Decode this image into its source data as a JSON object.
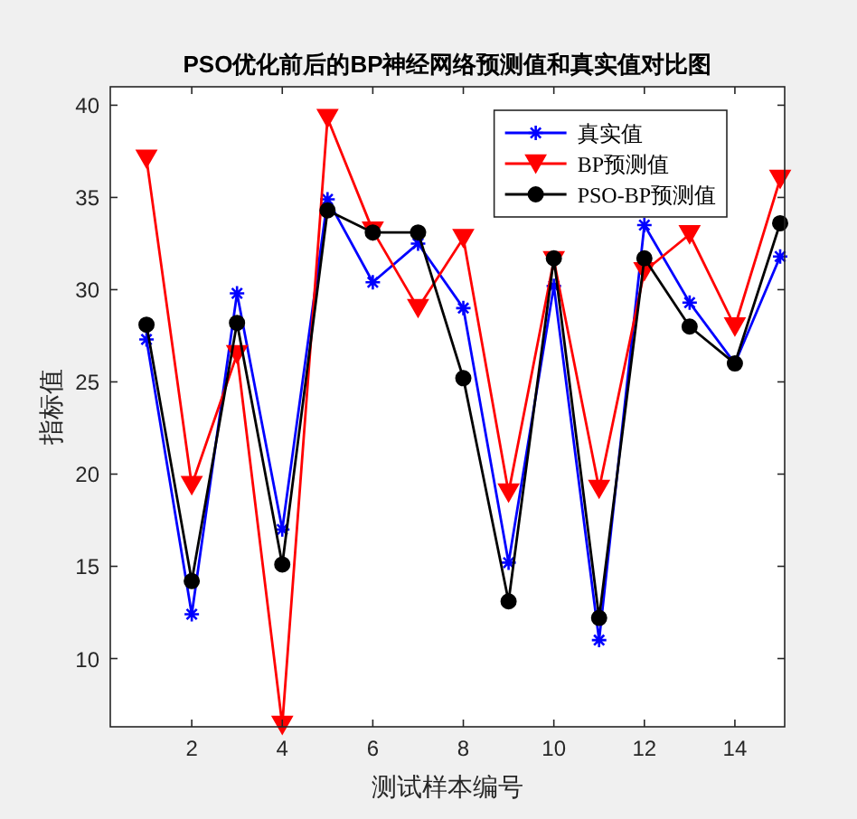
{
  "chart_data": {
    "type": "line",
    "title": "PSO优化前后的BP神经网络预测值和真实值对比图",
    "xlabel": "测试样本编号",
    "ylabel": "指标值",
    "x": [
      1,
      2,
      3,
      4,
      5,
      6,
      7,
      8,
      9,
      10,
      11,
      12,
      13,
      14,
      15
    ],
    "xlim": [
      0.2,
      15.1
    ],
    "ylim": [
      6.3,
      41
    ],
    "xticks": [
      2,
      4,
      6,
      8,
      10,
      12,
      14
    ],
    "yticks": [
      10,
      15,
      20,
      25,
      30,
      35,
      40
    ],
    "legend": "top right",
    "series": [
      {
        "name": "真实值",
        "color": "#0000ff",
        "marker": "cross",
        "values": [
          27.3,
          12.4,
          29.8,
          17.0,
          34.9,
          30.4,
          32.5,
          29.0,
          15.2,
          30.2,
          11.0,
          33.5,
          29.3,
          26.0,
          31.8
        ]
      },
      {
        "name": "BP预测值",
        "color": "#ff0000",
        "marker": "triangle",
        "values": [
          37.1,
          19.4,
          26.5,
          6.4,
          39.3,
          33.2,
          29.0,
          32.8,
          19.0,
          31.6,
          19.2,
          31.0,
          33.0,
          28.0,
          36.0
        ]
      },
      {
        "name": "PSO-BP预测值",
        "color": "#000000",
        "marker": "circle",
        "values": [
          28.1,
          14.2,
          28.2,
          15.1,
          34.3,
          33.1,
          33.1,
          25.2,
          13.1,
          31.7,
          12.2,
          31.7,
          28.0,
          26.0,
          33.6
        ]
      }
    ]
  }
}
